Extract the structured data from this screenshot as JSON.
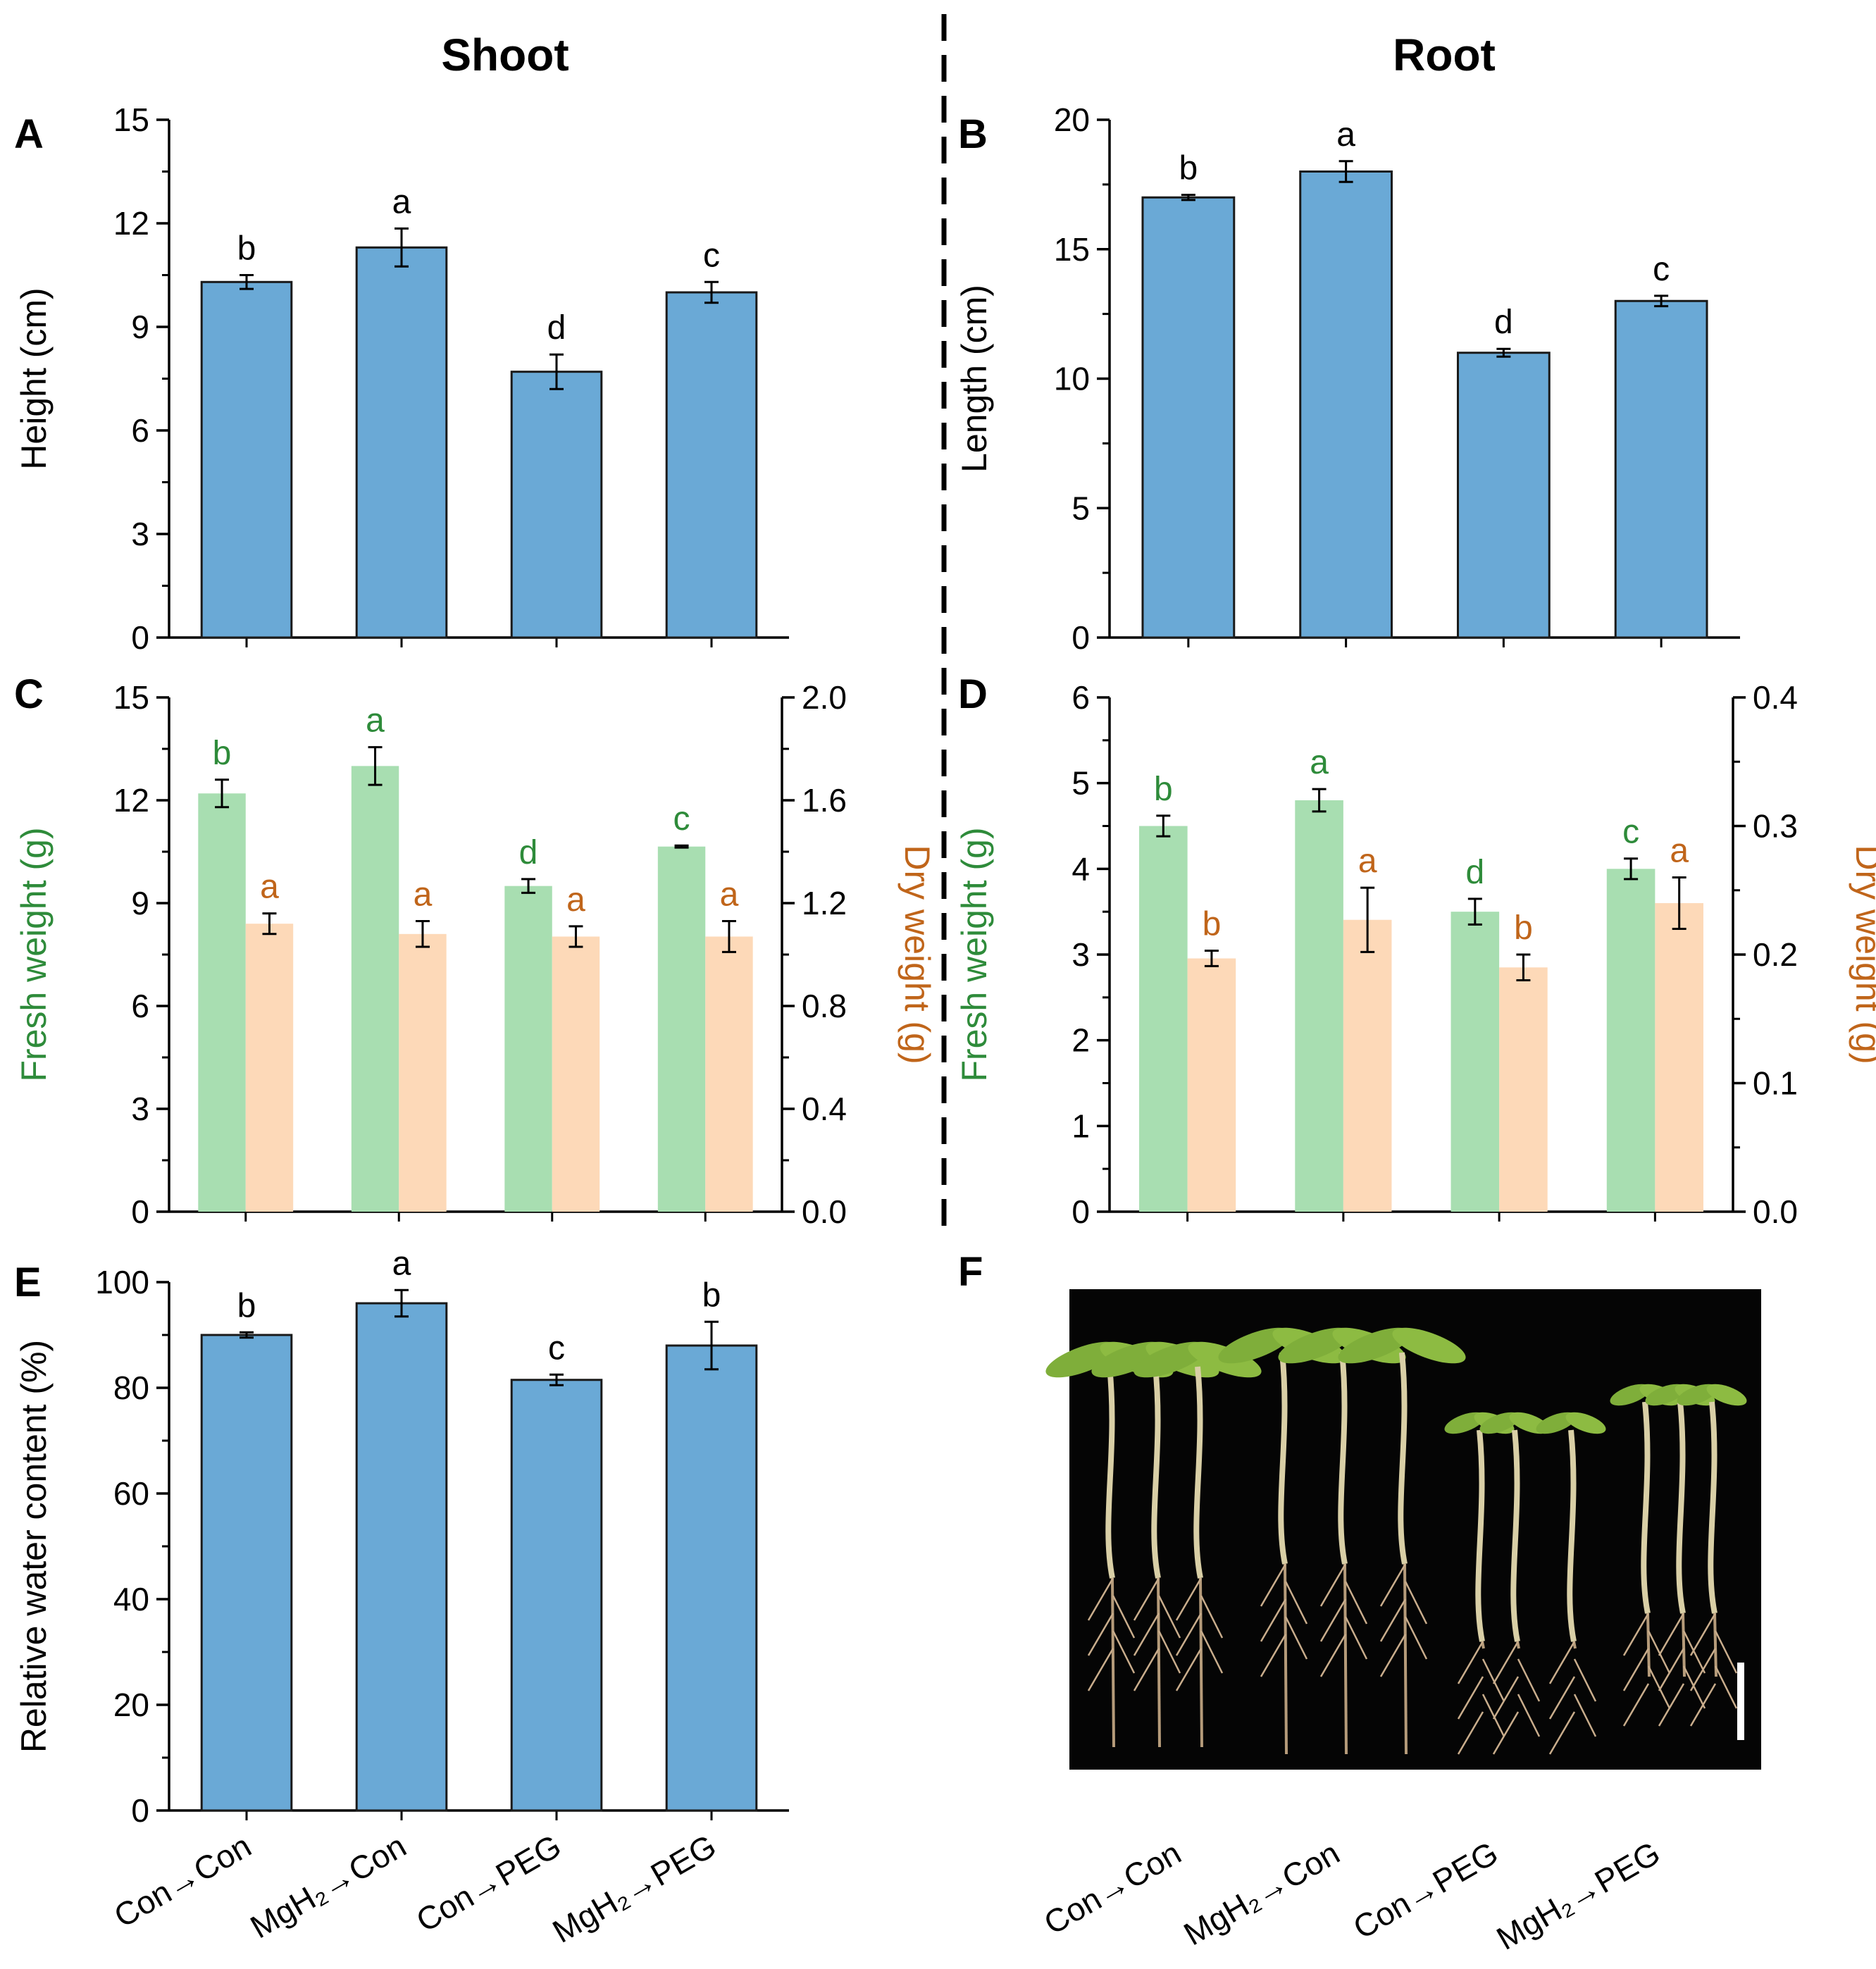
{
  "colors": {
    "blue": "#6aa9d6",
    "green": "#a8deb1",
    "orange": "#fdd9b8",
    "green_text": "#2e8b3a",
    "orange_text": "#c0651a",
    "black": "#000000"
  },
  "headers": {
    "shoot": "Shoot",
    "root": "Root"
  },
  "categories": [
    "Con→Con",
    "MgH₂→Con",
    "Con→PEG",
    "MgH₂→PEG"
  ],
  "chart_data": [
    {
      "panel": "A",
      "type": "bar",
      "title": "Shoot",
      "ylabel": "Height (cm)",
      "ylim": [
        0,
        15
      ],
      "yticks": [
        0,
        3,
        6,
        9,
        12,
        15
      ],
      "categories": [
        "Con→Con",
        "MgH₂→Con",
        "Con→PEG",
        "MgH₂→PEG"
      ],
      "series": [
        {
          "name": "Height",
          "values": [
            10.3,
            11.3,
            7.7,
            10.0
          ],
          "errors": [
            0.2,
            0.55,
            0.5,
            0.3
          ],
          "letters": [
            "b",
            "a",
            "d",
            "c"
          ]
        }
      ]
    },
    {
      "panel": "B",
      "type": "bar",
      "title": "Root",
      "ylabel": "Length (cm)",
      "ylim": [
        0,
        20
      ],
      "yticks": [
        0,
        5,
        10,
        15,
        20
      ],
      "categories": [
        "Con→Con",
        "MgH₂→Con",
        "Con→PEG",
        "MgH₂→PEG"
      ],
      "series": [
        {
          "name": "Length",
          "values": [
            17.0,
            18.0,
            11.0,
            13.0
          ],
          "errors": [
            0.1,
            0.4,
            0.15,
            0.2
          ],
          "letters": [
            "b",
            "a",
            "d",
            "c"
          ]
        }
      ]
    },
    {
      "panel": "C",
      "type": "bar",
      "title": "Shoot",
      "ylabel": "Fresh weight (g)",
      "ylim": [
        0,
        15
      ],
      "yticks": [
        0,
        3,
        6,
        9,
        12,
        15
      ],
      "y2label": "Dry weight (g)",
      "y2lim": [
        0,
        2.0
      ],
      "y2ticks": [
        "0.0",
        "0.4",
        "0.8",
        "1.2",
        "1.6",
        "2.0"
      ],
      "categories": [
        "Con→Con",
        "MgH₂→Con",
        "Con→PEG",
        "MgH₂→PEG"
      ],
      "series": [
        {
          "name": "Fresh weight",
          "axis": "left",
          "values": [
            12.2,
            13.0,
            9.5,
            10.65
          ],
          "errors": [
            0.4,
            0.55,
            0.2,
            0.03
          ],
          "letters": [
            "b",
            "a",
            "d",
            "c"
          ]
        },
        {
          "name": "Dry weight",
          "axis": "right",
          "values": [
            1.12,
            1.08,
            1.07,
            1.07
          ],
          "errors": [
            0.04,
            0.05,
            0.04,
            0.06
          ],
          "letters": [
            "a",
            "a",
            "a",
            "a"
          ]
        }
      ]
    },
    {
      "panel": "D",
      "type": "bar",
      "title": "Root",
      "ylabel": "Fresh weight (g)",
      "ylim": [
        0,
        6
      ],
      "yticks": [
        0,
        1,
        2,
        3,
        4,
        5,
        6
      ],
      "y2label": "Dry weight (g)",
      "y2lim": [
        0,
        0.4
      ],
      "y2ticks": [
        "0.0",
        "0.1",
        "0.2",
        "0.3",
        "0.4"
      ],
      "categories": [
        "Con→Con",
        "MgH₂→Con",
        "Con→PEG",
        "MgH₂→PEG"
      ],
      "series": [
        {
          "name": "Fresh weight",
          "axis": "left",
          "values": [
            4.5,
            4.8,
            3.5,
            4.0
          ],
          "errors": [
            0.12,
            0.13,
            0.15,
            0.12
          ],
          "letters": [
            "b",
            "a",
            "d",
            "c"
          ]
        },
        {
          "name": "Dry weight",
          "axis": "right",
          "values": [
            0.197,
            0.227,
            0.19,
            0.24
          ],
          "errors": [
            0.006,
            0.025,
            0.01,
            0.02
          ],
          "letters": [
            "b",
            "a",
            "b",
            "a"
          ]
        }
      ]
    },
    {
      "panel": "E",
      "type": "bar",
      "ylabel": "Relative water content (%)",
      "ylim": [
        0,
        100
      ],
      "yticks": [
        0,
        20,
        40,
        60,
        80,
        100
      ],
      "categories": [
        "Con→Con",
        "MgH₂→Con",
        "Con→PEG",
        "MgH₂→PEG"
      ],
      "series": [
        {
          "name": "Relative water content",
          "values": [
            90.0,
            96.0,
            81.5,
            88.0
          ],
          "errors": [
            0.5,
            2.5,
            1.0,
            4.5
          ],
          "letters": [
            "b",
            "a",
            "c",
            "b"
          ]
        }
      ]
    }
  ],
  "photo": {
    "label": "F",
    "categories": [
      "Con→Con",
      "MgH₂→Con",
      "Con→PEG",
      "MgH₂→PEG"
    ]
  }
}
